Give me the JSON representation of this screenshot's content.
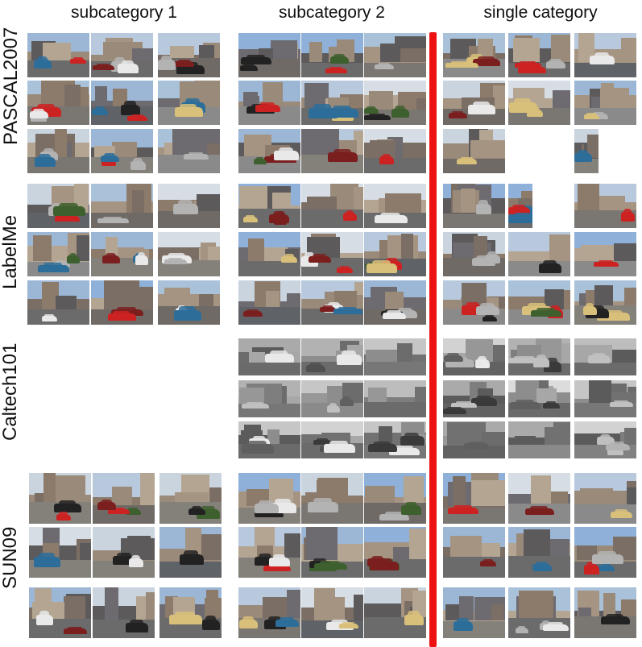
{
  "columns": [
    "subcategory 1",
    "subcategory 2",
    "single category"
  ],
  "rows": [
    "PASCAL2007",
    "LabelMe",
    "Caltech101",
    "SUN09"
  ],
  "divider_color": "#ee1111",
  "palette": {
    "grayscale_sets": [
      "Caltech101"
    ],
    "empty_cells": [
      [
        "Caltech101",
        "subcategory 1"
      ]
    ]
  }
}
